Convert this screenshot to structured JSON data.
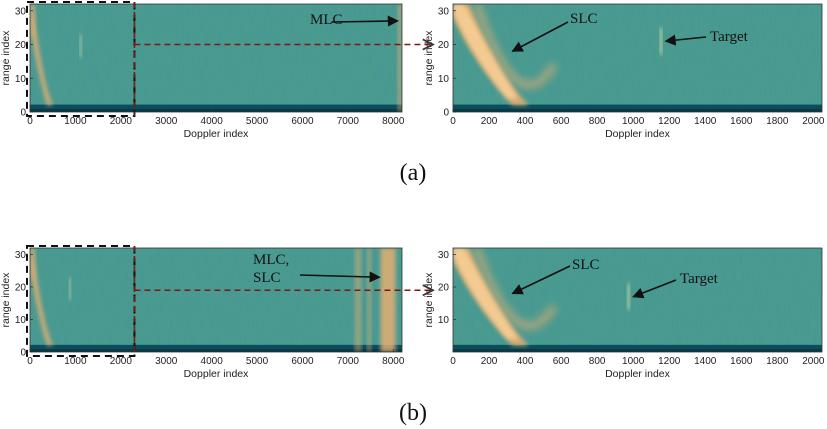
{
  "chart_data": [
    {
      "type": "heatmap",
      "panel": "a",
      "xlabel": "Doppler index",
      "ylabel": "range index",
      "xlim": [
        0,
        8192
      ],
      "ylim": [
        0,
        32
      ],
      "xticks": [
        0,
        1000,
        2000,
        3000,
        4000,
        5000,
        6000,
        7000,
        8000
      ],
      "yticks": [
        0,
        10,
        20,
        30
      ],
      "zoom_box": {
        "x": [
          0,
          2300
        ]
      },
      "annotations": [
        {
          "text": "MLC",
          "target": [
            8100,
            27
          ]
        }
      ]
    },
    {
      "type": "heatmap",
      "panel": "a-zoom",
      "xlabel": "Doppler index",
      "ylabel": "range index",
      "xlim": [
        0,
        2048
      ],
      "ylim": [
        0,
        32
      ],
      "xticks": [
        0,
        200,
        400,
        600,
        800,
        1000,
        1200,
        1400,
        1600,
        1800,
        2000
      ],
      "yticks": [
        0,
        10,
        20,
        30
      ],
      "annotations": [
        {
          "text": "SLC",
          "target": [
            330,
            18
          ]
        },
        {
          "text": "Target",
          "target": [
            1180,
            21
          ]
        }
      ]
    },
    {
      "type": "heatmap",
      "panel": "b",
      "xlabel": "Doppler index",
      "ylabel": "range index",
      "xlim": [
        0,
        8192
      ],
      "ylim": [
        0,
        32
      ],
      "xticks": [
        0,
        1000,
        2000,
        3000,
        4000,
        5000,
        6000,
        7000,
        8000
      ],
      "yticks": [
        0,
        10,
        20,
        30
      ],
      "zoom_box": {
        "x": [
          0,
          2300
        ]
      },
      "annotations": [
        {
          "text": "MLC,",
          "text2": "SLC",
          "target": [
            7700,
            23
          ]
        }
      ]
    },
    {
      "type": "heatmap",
      "panel": "b-zoom",
      "xlabel": "Doppler index",
      "ylabel": "range index",
      "xlim": [
        0,
        2048
      ],
      "ylim": [
        0,
        32
      ],
      "xticks": [
        0,
        200,
        400,
        600,
        800,
        1000,
        1200,
        1400,
        1600,
        1800,
        2000
      ],
      "yticks": [
        10,
        20,
        30
      ],
      "annotations": [
        {
          "text": "SLC",
          "target": [
            330,
            18
          ]
        },
        {
          "text": "Target",
          "target": [
            1000,
            17
          ]
        }
      ]
    }
  ],
  "captions": [
    "(a)",
    "(b)"
  ],
  "colors": {
    "background": "#4a9a90",
    "low_band": "#0b4d5c",
    "clutter": "#f0b070",
    "clutter_hot": "#ffd8a0",
    "target": "#e8e4a0",
    "leader": "#7a1a14"
  }
}
